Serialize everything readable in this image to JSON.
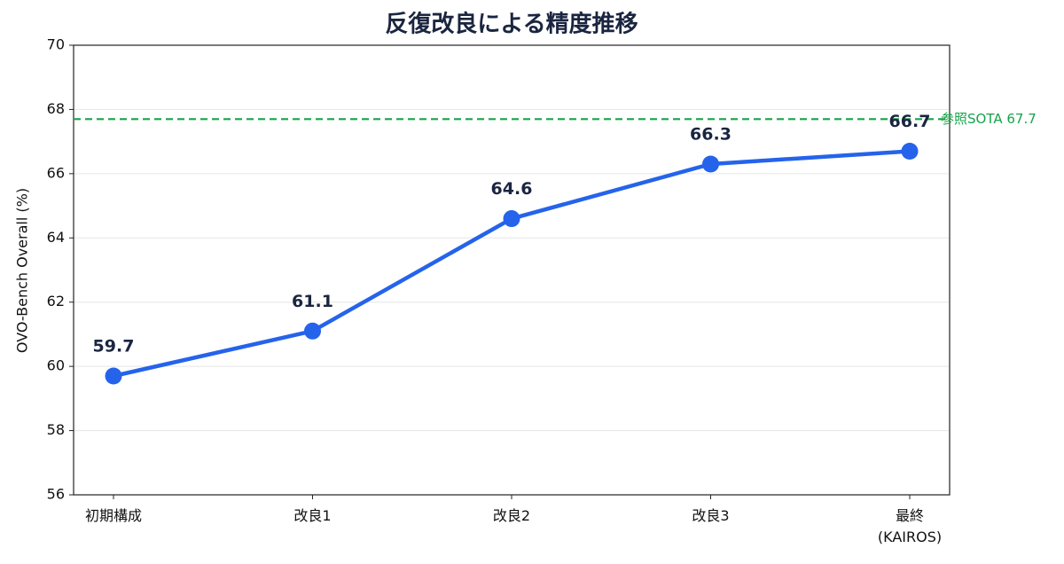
{
  "chart_data": {
    "type": "line",
    "title": "反復改良による精度推移",
    "y_label": "OVO-Bench Overall (%)",
    "categories": [
      "初期構成",
      "改良1",
      "改良2",
      "改良3",
      "最終\n(KAIROS)"
    ],
    "series": [
      {
        "name": "OVO-Bench Overall",
        "color": "#2563eb",
        "values": [
          59.7,
          61.1,
          64.6,
          66.3,
          66.7
        ]
      }
    ],
    "ylim": [
      56,
      70
    ],
    "yticks": [
      56,
      58,
      60,
      62,
      64,
      66,
      68,
      70
    ],
    "grid": true,
    "reference": {
      "value": 67.7,
      "label": "参照SOTA 67.7",
      "color": "#16a34a"
    }
  }
}
